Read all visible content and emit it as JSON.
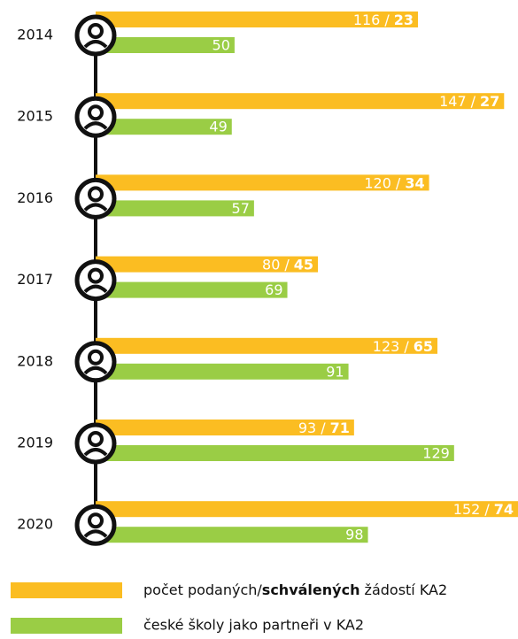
{
  "chart_data": {
    "type": "bar",
    "orientation": "horizontal",
    "categories": [
      "2014",
      "2015",
      "2016",
      "2017",
      "2018",
      "2019",
      "2020"
    ],
    "value_separator": "/",
    "series": [
      {
        "name": "počet podaných/schválených žádostí KA2",
        "name_emphasis": "schválených",
        "color": "#fbbd22",
        "values": [
          116,
          147,
          120,
          80,
          123,
          93,
          152
        ],
        "approved": [
          23,
          27,
          34,
          45,
          65,
          71,
          74
        ]
      },
      {
        "name": "české školy jako partneři v KA2",
        "color": "#9acd45",
        "values": [
          50,
          49,
          57,
          69,
          91,
          129,
          98
        ]
      }
    ]
  }
}
